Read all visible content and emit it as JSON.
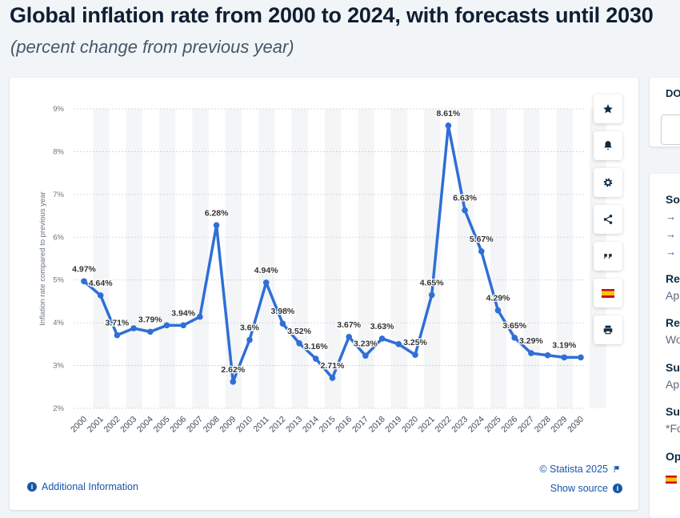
{
  "header": {
    "title": "Global inflation rate from 2000 to 2024, with forecasts until 2030",
    "subtitle": "(percent change from previous year)"
  },
  "chart_data": {
    "type": "line",
    "title": "Global inflation rate from 2000 to 2024, with forecasts until 2030",
    "ylabel": "Inflation rate compared to previous year",
    "xlabel": "",
    "ylim": [
      2,
      9
    ],
    "y_ticks": [
      "2%",
      "3%",
      "4%",
      "5%",
      "6%",
      "7%",
      "8%",
      "9%"
    ],
    "categories": [
      "2000",
      "2001",
      "2002",
      "2003",
      "2004",
      "2005",
      "2006",
      "2007",
      "2008",
      "2009",
      "2010",
      "2011",
      "2012",
      "2013",
      "2014",
      "2015",
      "2016",
      "2017",
      "2018",
      "2019",
      "2020",
      "2021",
      "2022",
      "2023",
      "2024",
      "2025",
      "2026",
      "2027",
      "2028",
      "2029",
      "2030"
    ],
    "values": [
      4.97,
      4.64,
      3.71,
      3.87,
      3.79,
      3.94,
      3.94,
      4.14,
      6.28,
      2.62,
      3.6,
      4.94,
      3.98,
      3.52,
      3.16,
      2.71,
      3.67,
      3.23,
      3.63,
      3.5,
      3.25,
      4.65,
      8.61,
      6.63,
      5.67,
      4.29,
      3.65,
      3.29,
      3.24,
      3.19,
      3.19
    ],
    "data_labels": [
      "4.97%",
      "4.64%",
      "3.71%",
      "",
      "3.79%",
      "",
      "3.94%",
      "",
      "6.28%",
      "2.62%",
      "3.6%",
      "4.94%",
      "3.98%",
      "3.52%",
      "3.16%",
      "2.71%",
      "3.67%",
      "3.23%",
      "3.63%",
      "",
      "3.25%",
      "4.65%",
      "8.61%",
      "6.63%",
      "5.67%",
      "4.29%",
      "3.65%",
      "3.29%",
      "",
      "3.19%",
      ""
    ],
    "series_color": "#2f6fd6",
    "grid": true
  },
  "toolbar": {
    "icons": [
      "star-icon",
      "bell-icon",
      "gear-icon",
      "share-icon",
      "quote-icon",
      "flag-icon",
      "print-icon"
    ]
  },
  "footer": {
    "additional_info": "Additional Information",
    "copyright": "© Statista 2025",
    "show_source": "Show source"
  },
  "side": {
    "top_label": "DO",
    "labels": [
      "So",
      "Re",
      "Re",
      "Su",
      "Su",
      "Op"
    ],
    "texts": [
      "Ap",
      "Wo",
      "Ap",
      "*Fo"
    ]
  }
}
